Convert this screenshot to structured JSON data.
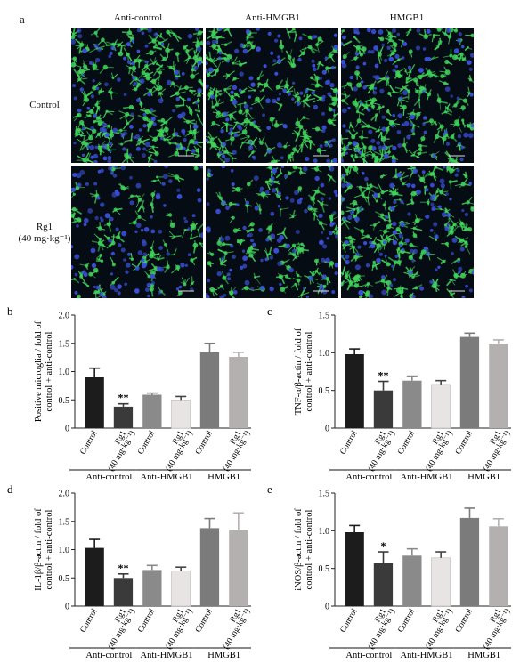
{
  "panel_a": {
    "letter": "a",
    "columns": [
      "Anti-control",
      "Anti-HMGB1",
      "HMGB1"
    ],
    "rows": [
      {
        "lines": [
          "Control"
        ]
      },
      {
        "lines": [
          "Rg1",
          "(40 mg·kg⁻¹)"
        ]
      }
    ],
    "micrograph_colors": {
      "background": "#060c14",
      "microglia": "#3fd35a",
      "nuclei": "#3a4fd8"
    },
    "microglia_density": [
      [
        1.0,
        0.85,
        0.95
      ],
      [
        0.45,
        0.55,
        0.9
      ]
    ]
  },
  "chart_data": [
    {
      "type": "bar",
      "letter": "b",
      "ylabel_lines": [
        "Positive microglia / fold of",
        "control + anti-control"
      ],
      "ylim": [
        0,
        2.0
      ],
      "yticks": [
        "0",
        "0.5",
        "1.0",
        "1.5",
        "2.0"
      ],
      "categories": [
        "Control",
        "Rg1 (40 mg·kg⁻¹)",
        "Control",
        "Rg1 (40 mg·kg⁻¹)",
        "Control",
        "Rg1 (40 mg·kg⁻¹)"
      ],
      "values": [
        0.9,
        0.38,
        0.59,
        0.5,
        1.34,
        1.26
      ],
      "errors": [
        0.16,
        0.05,
        0.03,
        0.06,
        0.16,
        0.08
      ],
      "significance": [
        "",
        "**",
        "",
        "",
        "",
        ""
      ],
      "bar_colors": [
        "#1c1c1c",
        "#3a3a3a",
        "#8a8a8a",
        "#e8e4e4",
        "#7b7b7b",
        "#b5b0b0"
      ],
      "groups": [
        "Anti-control",
        "Anti-HMGB1",
        "HMGB1"
      ]
    },
    {
      "type": "bar",
      "letter": "c",
      "ylabel_lines": [
        "TNF-α/β-actin / fold of",
        "control + anti-control"
      ],
      "ylim": [
        0,
        1.5
      ],
      "yticks": [
        "0",
        "0.5",
        "1.0",
        "1.5"
      ],
      "categories": [
        "Control",
        "Rg1 (40 mg·kg⁻¹)",
        "Control",
        "Rg1 (40 mg·kg⁻¹)",
        "Control",
        "Rg1 (40 mg·kg⁻¹)"
      ],
      "values": [
        0.98,
        0.5,
        0.63,
        0.58,
        1.21,
        1.12
      ],
      "errors": [
        0.07,
        0.12,
        0.06,
        0.05,
        0.05,
        0.05
      ],
      "significance": [
        "",
        "**",
        "",
        "",
        "",
        ""
      ],
      "bar_colors": [
        "#1c1c1c",
        "#3a3a3a",
        "#8a8a8a",
        "#e8e4e4",
        "#7b7b7b",
        "#b5b0b0"
      ],
      "groups": [
        "Anti-control",
        "Anti-HMGB1",
        "HMGB1"
      ]
    },
    {
      "type": "bar",
      "letter": "d",
      "ylabel_lines": [
        "IL-1β/β-actin / fold of",
        "control + anti-control"
      ],
      "ylim": [
        0,
        2.0
      ],
      "yticks": [
        "0",
        "0.5",
        "1.0",
        "1.5",
        "2.0"
      ],
      "categories": [
        "Control",
        "Rg1 (40 mg·kg⁻¹)",
        "Control",
        "Rg1 (40 mg·kg⁻¹)",
        "Control",
        "Rg1 (40 mg·kg⁻¹)"
      ],
      "values": [
        1.03,
        0.5,
        0.64,
        0.62,
        1.38,
        1.35
      ],
      "errors": [
        0.15,
        0.07,
        0.08,
        0.07,
        0.17,
        0.3
      ],
      "significance": [
        "",
        "**",
        "",
        "",
        "",
        ""
      ],
      "bar_colors": [
        "#1c1c1c",
        "#3a3a3a",
        "#8a8a8a",
        "#e8e4e4",
        "#7b7b7b",
        "#b5b0b0"
      ],
      "groups": [
        "Anti-control",
        "Anti-HMGB1",
        "HMGB1"
      ]
    },
    {
      "type": "bar",
      "letter": "e",
      "ylabel_lines": [
        "iNOS/β-actin / fold of",
        "control + anti-control"
      ],
      "ylim": [
        0,
        1.5
      ],
      "yticks": [
        "0",
        "0.5",
        "1.0",
        "1.5"
      ],
      "categories": [
        "Control",
        "Rg1 (40 mg·kg⁻¹)",
        "Control",
        "Rg1 (40 mg·kg⁻¹)",
        "Control",
        "Rg1 (40 mg·kg⁻¹)"
      ],
      "values": [
        0.98,
        0.57,
        0.67,
        0.64,
        1.17,
        1.06
      ],
      "errors": [
        0.09,
        0.15,
        0.09,
        0.08,
        0.13,
        0.1
      ],
      "significance": [
        "",
        "*",
        "",
        "",
        "",
        ""
      ],
      "bar_colors": [
        "#1c1c1c",
        "#3a3a3a",
        "#8a8a8a",
        "#e8e4e4",
        "#7b7b7b",
        "#b5b0b0"
      ],
      "groups": [
        "Anti-control",
        "Anti-HMGB1",
        "HMGB1"
      ]
    }
  ]
}
